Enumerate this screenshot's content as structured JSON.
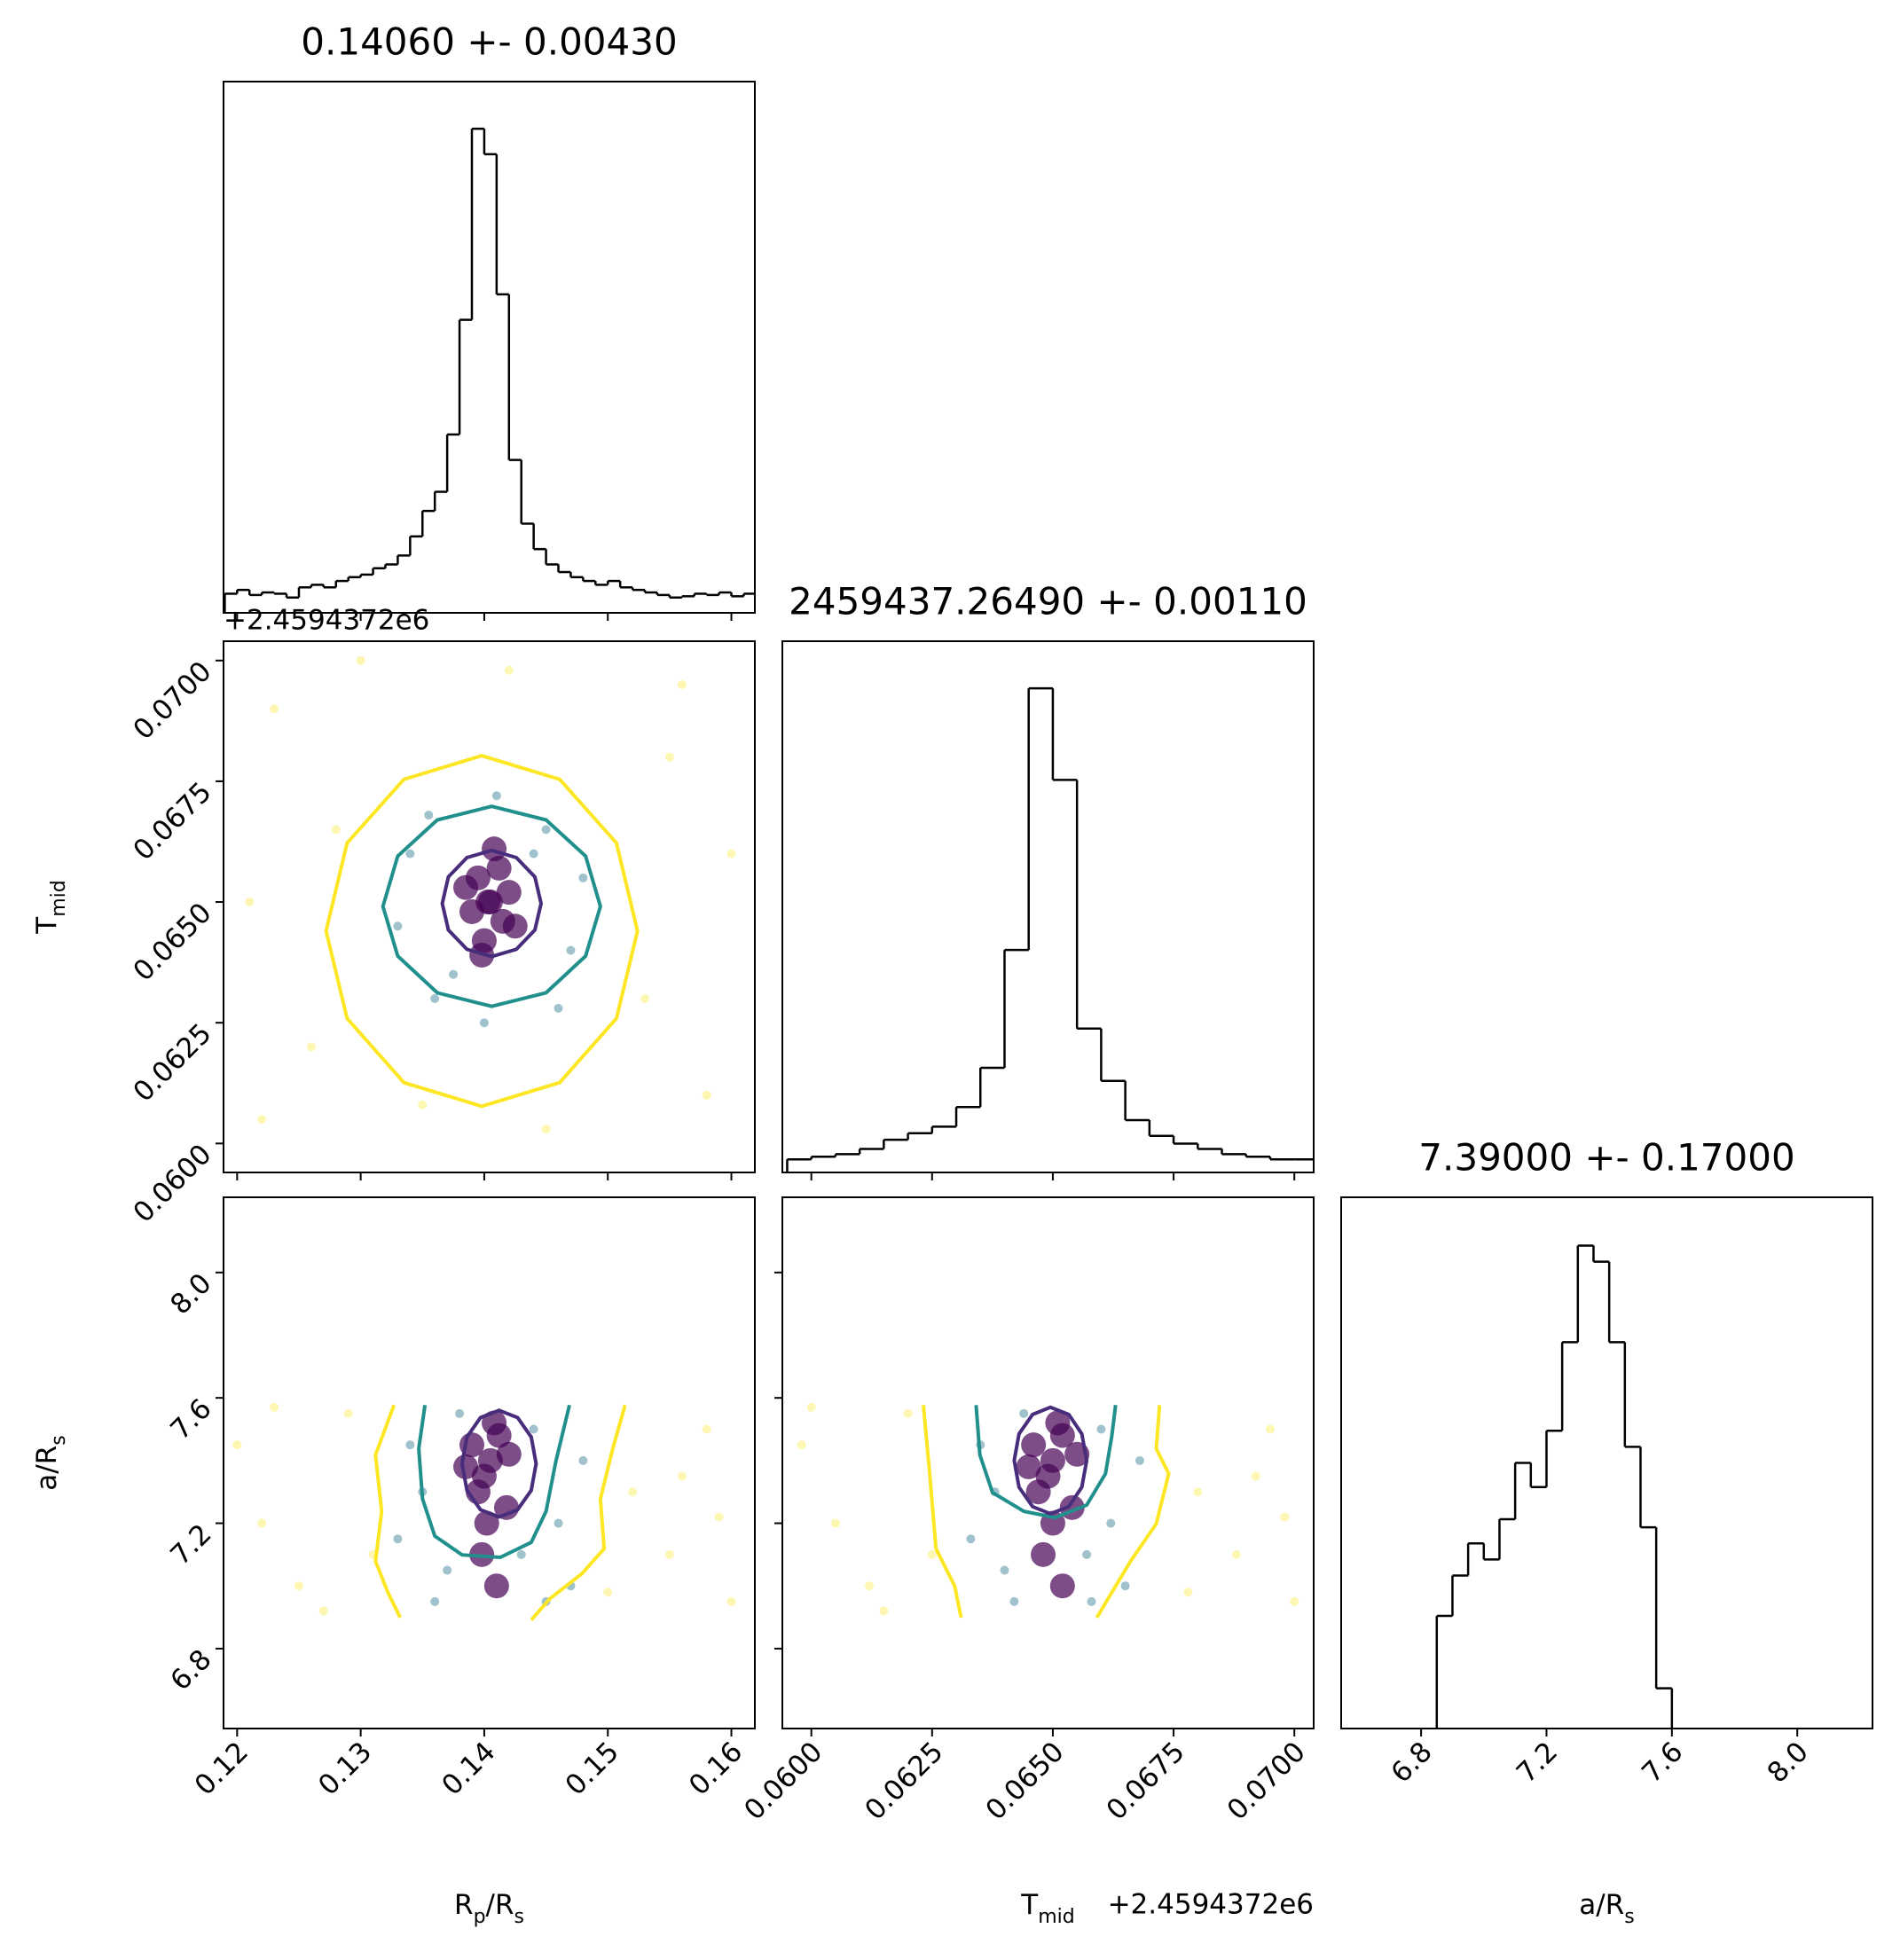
{
  "chart_data": [
    {
      "type": "histogram",
      "title": "0.14060 +- 0.00430",
      "color": "#000000",
      "bins": [
        0.119,
        0.12,
        0.121,
        0.122,
        0.123,
        0.124,
        0.125,
        0.126,
        0.127,
        0.128,
        0.129,
        0.13,
        0.131,
        0.132,
        0.133,
        0.134,
        0.135,
        0.136,
        0.137,
        0.138,
        0.139,
        0.14,
        0.141,
        0.142,
        0.143,
        0.144,
        0.145,
        0.146,
        0.147,
        0.148,
        0.149,
        0.15,
        0.151,
        0.152,
        0.153,
        0.154,
        0.155,
        0.156,
        0.157,
        0.158,
        0.159,
        0.16,
        0.161,
        0.162
      ],
      "values": [
        15,
        18,
        14,
        16,
        15,
        12,
        20,
        22,
        20,
        25,
        28,
        30,
        35,
        38,
        45,
        60,
        80,
        95,
        140,
        230,
        380,
        360,
        250,
        120,
        70,
        50,
        38,
        32,
        28,
        25,
        22,
        25,
        20,
        18,
        16,
        14,
        12,
        13,
        15,
        14,
        16,
        13,
        15
      ],
      "xlim": [
        0.1189,
        0.1619
      ],
      "xticks": [
        0.12,
        0.13,
        0.14,
        0.15,
        0.16
      ],
      "ylim": [
        0,
        417
      ]
    },
    {
      "type": "scatter",
      "yoffset": "+2.4594372e6",
      "ylabel": [
        "T",
        "mid"
      ],
      "xlim": [
        0.1189,
        0.1619
      ],
      "xticks": [
        0.12,
        0.13,
        0.14,
        0.15,
        0.16
      ],
      "ylim": [
        0.0594,
        0.0704
      ],
      "yticks": [
        {
          "value": 0.06,
          "label": "0.0600"
        },
        0.0625,
        {
          "value": 0.065,
          "label": "0.0650"
        },
        0.0675,
        {
          "value": 0.07,
          "label": "0.0700"
        }
      ],
      "series": [
        {
          "color": "#fde725",
          "x": [
            0.123,
            0.158,
            0.126,
            0.155,
            0.121,
            0.16,
            0.13,
            0.145,
            0.128,
            0.153,
            0.135,
            0.156,
            0.122,
            0.142
          ],
          "y": [
            0.069,
            0.061,
            0.062,
            0.068,
            0.065,
            0.066,
            0.07,
            0.0603,
            0.0665,
            0.063,
            0.0608,
            0.0695,
            0.0605,
            0.0698
          ]
        },
        {
          "color": "#2a788e",
          "x": [
            0.134,
            0.147,
            0.136,
            0.145,
            0.133,
            0.148,
            0.14,
            0.141,
            0.1355,
            0.146,
            0.1375,
            0.144
          ],
          "y": [
            0.066,
            0.064,
            0.063,
            0.0665,
            0.0645,
            0.0655,
            0.0625,
            0.0672,
            0.0668,
            0.0628,
            0.0635,
            0.066
          ]
        },
        {
          "color": "#440154",
          "x": [
            0.1405,
            0.1395,
            0.1415,
            0.14,
            0.1412,
            0.139,
            0.142,
            0.1408,
            0.1398,
            0.1385,
            0.1425,
            0.1403
          ],
          "y": [
            0.065,
            0.0655,
            0.0646,
            0.0642,
            0.0657,
            0.0648,
            0.0652,
            0.0661,
            0.0639,
            0.0653,
            0.0645,
            0.065
          ]
        }
      ],
      "contours": [
        {
          "color": "#fde725",
          "x": [
            0.1524,
            0.1507,
            0.1461,
            0.1398,
            0.1335,
            0.1289,
            0.1272,
            0.1289,
            0.1335,
            0.1398,
            0.1461,
            0.1507
          ],
          "y": [
            0.0644,
            0.06622,
            0.06754,
            0.06803,
            0.06754,
            0.06622,
            0.0644,
            0.06259,
            0.06126,
            0.06077,
            0.06126,
            0.06259
          ]
        },
        {
          "color": "#21908d",
          "x": [
            0.1494,
            0.1482,
            0.145,
            0.1406,
            0.1362,
            0.133,
            0.1318,
            0.133,
            0.1362,
            0.1406,
            0.145,
            0.1482
          ],
          "y": [
            0.06491,
            0.06595,
            0.0667,
            0.06698,
            0.0667,
            0.06595,
            0.06491,
            0.06388,
            0.06312,
            0.06284,
            0.06312,
            0.06388
          ]
        },
        {
          "color": "#472d7b",
          "x": [
            0.1446,
            0.1441,
            0.1426,
            0.1406,
            0.1386,
            0.1371,
            0.1366,
            0.1371,
            0.1386,
            0.1406,
            0.1426,
            0.1441
          ],
          "y": [
            0.06497,
            0.06552,
            0.06592,
            0.06607,
            0.06592,
            0.06552,
            0.06497,
            0.06442,
            0.06402,
            0.06387,
            0.06402,
            0.06442
          ]
        }
      ]
    },
    {
      "type": "histogram",
      "title": "2459437.26490 +- 0.00110",
      "color": "#000000",
      "bins": [
        0.0595,
        0.06,
        0.0605,
        0.061,
        0.0615,
        0.062,
        0.0625,
        0.063,
        0.0635,
        0.064,
        0.0645,
        0.065,
        0.0655,
        0.066,
        0.0665,
        0.067,
        0.0675,
        0.068,
        0.0685,
        0.069,
        0.0695,
        0.07,
        0.0705
      ],
      "values": [
        10,
        12,
        14,
        18,
        25,
        30,
        35,
        50,
        80,
        170,
        370,
        300,
        110,
        70,
        40,
        28,
        22,
        18,
        14,
        12,
        10,
        10
      ],
      "xlim": [
        0.0594,
        0.0704
      ],
      "xticks": [
        {
          "value": 0.06,
          "label": "0.0600"
        },
        0.0625,
        {
          "value": 0.065,
          "label": "0.0650"
        },
        0.0675,
        {
          "value": 0.07,
          "label": "0.0700"
        }
      ],
      "ylim": [
        0,
        406
      ]
    },
    {
      "type": "scatter",
      "xlabel": [
        "R",
        "p",
        "/R",
        "s"
      ],
      "ylabel": [
        "a/R",
        "s"
      ],
      "xlim": [
        0.1189,
        0.1619
      ],
      "xticks": [
        0.12,
        0.13,
        0.14,
        0.15,
        0.16
      ],
      "ylim": [
        6.545,
        8.24
      ],
      "yticks": [
        6.8,
        7.2,
        7.6,
        {
          "value": 8,
          "label": "8.0"
        }
      ],
      "series": [
        {
          "color": "#fde725",
          "x": [
            0.122,
            0.158,
            0.125,
            0.155,
            0.12,
            0.16,
            0.129,
            0.152,
            0.127,
            0.156,
            0.131,
            0.15,
            0.123,
            0.159
          ],
          "y": [
            7.2,
            7.5,
            7.0,
            7.1,
            7.45,
            6.95,
            7.55,
            7.3,
            6.92,
            7.35,
            7.1,
            6.98,
            7.57,
            7.22
          ]
        },
        {
          "color": "#2a788e",
          "x": [
            0.135,
            0.146,
            0.137,
            0.144,
            0.134,
            0.147,
            0.136,
            0.145,
            0.133,
            0.148,
            0.138,
            0.143
          ],
          "y": [
            7.3,
            7.2,
            7.05,
            7.5,
            7.45,
            7.0,
            6.95,
            6.95,
            7.15,
            7.4,
            7.55,
            7.1
          ]
        },
        {
          "color": "#440154",
          "x": [
            0.1405,
            0.1395,
            0.1412,
            0.14,
            0.1418,
            0.139,
            0.1408,
            0.1402,
            0.1385,
            0.142,
            0.1398,
            0.141
          ],
          "y": [
            7.4,
            7.3,
            7.48,
            7.35,
            7.25,
            7.45,
            7.52,
            7.2,
            7.38,
            7.42,
            7.1,
            7.0
          ]
        }
      ],
      "contours": [
        {
          "color": "#fde725",
          "x": [
            0.1327,
            0.1312,
            0.1317,
            0.1312,
            0.1322,
            0.1332,
            null,
            0.1514,
            0.1504,
            0.1494,
            0.1497,
            0.1479,
            0.1453,
            0.1438
          ],
          "y": [
            7.577,
            7.418,
            7.238,
            7.079,
            6.979,
            6.899,
            null,
            7.577,
            7.438,
            7.278,
            7.119,
            7.039,
            6.959,
            6.891
          ]
        },
        {
          "color": "#21908d",
          "x": [
            0.1352,
            0.1347,
            0.135,
            0.136,
            0.1382,
            0.1413,
            0.1438,
            0.145,
            0.1458,
            0.1469
          ],
          "y": [
            7.577,
            7.438,
            7.278,
            7.159,
            7.099,
            7.091,
            7.139,
            7.238,
            7.398,
            7.577
          ]
        },
        {
          "color": "#472d7b",
          "x": [
            0.1442,
            0.1438,
            0.1427,
            0.1412,
            0.1397,
            0.1386,
            0.1382,
            0.1386,
            0.1397,
            0.1412,
            0.1427,
            0.1438
          ],
          "y": [
            7.39,
            7.475,
            7.537,
            7.56,
            7.537,
            7.475,
            7.39,
            7.305,
            7.243,
            7.22,
            7.243,
            7.305
          ]
        }
      ]
    },
    {
      "type": "scatter",
      "xlabel": [
        "T",
        "mid"
      ],
      "xoffset": "+2.4594372e6",
      "xlim": [
        0.0594,
        0.0704
      ],
      "xticks": [
        {
          "value": 0.06,
          "label": "0.0600"
        },
        0.0625,
        {
          "value": 0.065,
          "label": "0.0650"
        },
        0.0675,
        {
          "value": 0.07,
          "label": "0.0700"
        }
      ],
      "ylim": [
        6.545,
        8.24
      ],
      "yticks": [
        6.8,
        7.2,
        7.6,
        {
          "value": 8,
          "label": "8.0"
        }
      ],
      "series": [
        {
          "color": "#fde725",
          "x": [
            0.0605,
            0.0695,
            0.0612,
            0.0688,
            0.0598,
            0.07,
            0.062,
            0.068,
            0.0615,
            0.0692,
            0.0625,
            0.0678,
            0.06,
            0.0698
          ],
          "y": [
            7.2,
            7.5,
            7.0,
            7.1,
            7.45,
            6.95,
            7.55,
            7.3,
            6.92,
            7.35,
            7.1,
            6.98,
            7.57,
            7.22
          ]
        },
        {
          "color": "#2a788e",
          "x": [
            0.0638,
            0.0662,
            0.064,
            0.066,
            0.0635,
            0.0665,
            0.0642,
            0.0658,
            0.0633,
            0.0668,
            0.0644,
            0.0657
          ],
          "y": [
            7.3,
            7.2,
            7.05,
            7.5,
            7.45,
            7.0,
            6.95,
            6.95,
            7.15,
            7.4,
            7.55,
            7.1
          ]
        },
        {
          "color": "#440154",
          "x": [
            0.065,
            0.0647,
            0.0652,
            0.0649,
            0.0654,
            0.0646,
            0.0651,
            0.065,
            0.0645,
            0.0655,
            0.0648,
            0.0652
          ],
          "y": [
            7.4,
            7.3,
            7.48,
            7.35,
            7.25,
            7.45,
            7.52,
            7.2,
            7.38,
            7.42,
            7.1,
            7.0
          ]
        }
      ],
      "contours": [
        {
          "color": "#fde725",
          "x": [
            0.06232,
            0.06245,
            0.06258,
            0.06297,
            0.0631,
            null,
            0.06721,
            0.06714,
            0.0674,
            0.06714,
            0.06661,
            0.06622,
            0.06591
          ],
          "y": [
            7.577,
            7.358,
            7.119,
            6.999,
            6.899,
            null,
            7.577,
            7.438,
            7.358,
            7.198,
            7.079,
            6.979,
            6.899
          ]
        },
        {
          "color": "#21908d",
          "x": [
            0.06341,
            0.06349,
            0.06375,
            0.0644,
            0.06505,
            0.0657,
            0.06609,
            0.06622,
            0.0663
          ],
          "y": [
            7.577,
            7.418,
            7.298,
            7.238,
            7.218,
            7.258,
            7.358,
            7.478,
            7.577
          ]
        },
        {
          "color": "#472d7b",
          "x": [
            0.0657,
            0.0656,
            0.06533,
            0.06495,
            0.06458,
            0.0643,
            0.0642,
            0.0643,
            0.06458,
            0.06495,
            0.06533,
            0.0656
          ],
          "y": [
            7.4,
            7.485,
            7.547,
            7.57,
            7.547,
            7.485,
            7.4,
            7.315,
            7.253,
            7.23,
            7.253,
            7.315
          ]
        }
      ]
    },
    {
      "type": "histogram",
      "title": "7.39000 +- 0.17000",
      "xlabel": [
        "a/R",
        "s"
      ],
      "color": "#000000",
      "bins": [
        6.85,
        6.9,
        6.95,
        7.0,
        7.05,
        7.1,
        7.15,
        7.2,
        7.25,
        7.3,
        7.35,
        7.4,
        7.45,
        7.5,
        7.55,
        7.6
      ],
      "values": [
        70,
        95,
        115,
        105,
        130,
        165,
        150,
        185,
        240,
        300,
        290,
        240,
        175,
        125,
        25
      ],
      "xlim": [
        6.545,
        8.24
      ],
      "xticks": [
        6.8,
        7.2,
        7.6,
        {
          "value": 8,
          "label": "8.0"
        }
      ],
      "ylim": [
        0,
        330
      ]
    }
  ]
}
